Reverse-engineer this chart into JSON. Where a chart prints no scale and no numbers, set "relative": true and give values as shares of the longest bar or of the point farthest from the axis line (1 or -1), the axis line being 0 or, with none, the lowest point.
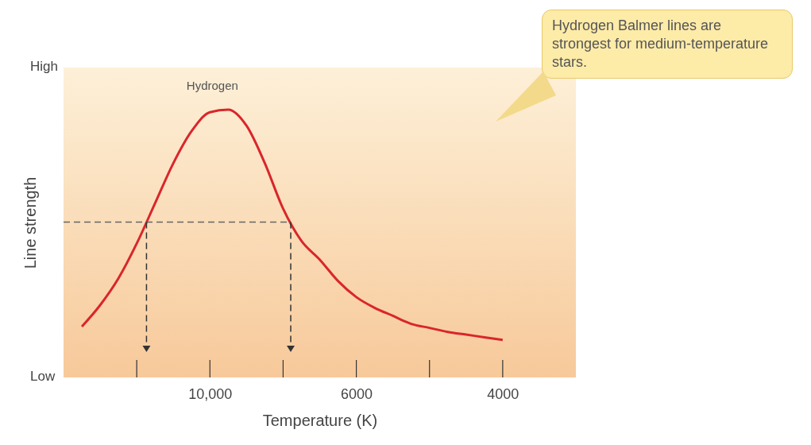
{
  "chart_data": {
    "type": "line",
    "xlabel": "Temperature (K)",
    "ylabel": "Line strength",
    "categories": [
      null,
      null,
      null,
      null,
      null,
      null,
      null,
      null,
      "10,000",
      null,
      null,
      null,
      null,
      null,
      null,
      null,
      "6000",
      null,
      null,
      null,
      null,
      null,
      null,
      null,
      "4000",
      null,
      null,
      null,
      null
    ],
    "relative": true,
    "series": [
      {
        "name": "Hydrogen",
        "color": "#d9262b",
        "values": [
          null,
          0.19,
          0.27,
          0.37,
          0.5,
          0.65,
          0.8,
          0.92,
          0.99,
          1,
          0.94,
          0.8,
          0.63,
          0.51,
          0.44,
          0.36,
          0.3,
          0.26,
          0.23,
          0.2,
          0.185,
          0.17,
          0.16,
          0.15,
          0.14,
          null,
          null,
          null,
          null
        ]
      }
    ],
    "ref_lines": [
      {
        "axis": "y",
        "value": 0.58,
        "line_style": "dashed"
      }
    ],
    "annotations": [
      "Hydrogen Balmer lines are strongest for medium-temperature stars.",
      "High",
      "Low"
    ],
    "grid": false,
    "legend": false
  }
}
